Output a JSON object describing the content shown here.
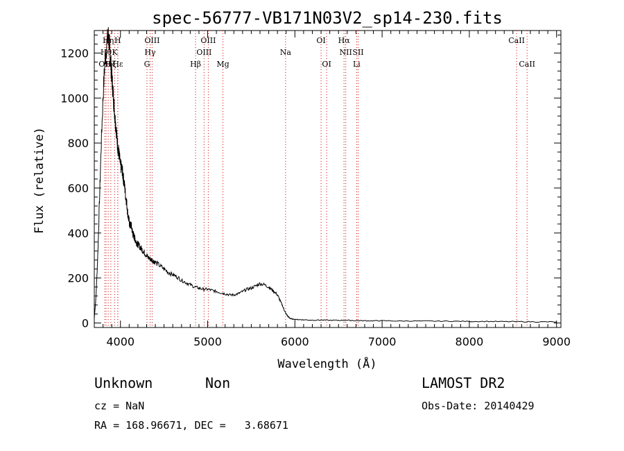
{
  "chart_data": {
    "type": "line",
    "title": "spec-56777-VB171N03V2_sp14-230.fits",
    "xlabel": "Wavelength (Å)",
    "ylabel": "Flux (relative)",
    "xlim": [
      3700,
      9050
    ],
    "ylim": [
      -20,
      1300
    ],
    "xticks": [
      4000,
      5000,
      6000,
      7000,
      8000,
      9000
    ],
    "yticks": [
      0,
      200,
      400,
      600,
      800,
      1000,
      1200
    ],
    "line_color": "#000000",
    "marker_color": "#cc0000",
    "grid": false,
    "spectrum": {
      "x": [
        3700,
        3720,
        3740,
        3760,
        3780,
        3800,
        3820,
        3840,
        3860,
        3870,
        3880,
        3890,
        3900,
        3910,
        3920,
        3930,
        3940,
        3950,
        3960,
        3970,
        3980,
        3990,
        4000,
        4010,
        4020,
        4030,
        4040,
        4050,
        4060,
        4070,
        4080,
        4090,
        4100,
        4110,
        4120,
        4130,
        4140,
        4150,
        4160,
        4170,
        4180,
        4190,
        4200,
        4220,
        4240,
        4260,
        4280,
        4300,
        4320,
        4340,
        4360,
        4380,
        4400,
        4450,
        4500,
        4550,
        4600,
        4650,
        4700,
        4750,
        4800,
        4850,
        4900,
        4950,
        5000,
        5050,
        5100,
        5150,
        5200,
        5250,
        5300,
        5350,
        5400,
        5450,
        5500,
        5550,
        5600,
        5650,
        5700,
        5730,
        5760,
        5800,
        5830,
        5860,
        5880,
        5900,
        5920,
        5940,
        5960,
        6000,
        6050,
        6100,
        6200,
        6300,
        6400,
        6500,
        6600,
        6700,
        6800,
        6900,
        7000,
        7200,
        7400,
        7600,
        7800,
        8000,
        8200,
        8400,
        8600,
        8800,
        9000
      ],
      "y": [
        20,
        120,
        300,
        550,
        800,
        1000,
        1150,
        1230,
        1280,
        1250,
        1200,
        1150,
        1100,
        1050,
        1000,
        950,
        900,
        870,
        820,
        780,
        760,
        730,
        700,
        690,
        680,
        650,
        630,
        600,
        560,
        540,
        500,
        470,
        450,
        430,
        440,
        420,
        400,
        390,
        380,
        370,
        360,
        355,
        350,
        340,
        330,
        320,
        310,
        300,
        290,
        285,
        280,
        275,
        270,
        255,
        240,
        225,
        215,
        205,
        190,
        180,
        170,
        160,
        155,
        150,
        150,
        145,
        140,
        135,
        130,
        125,
        125,
        130,
        140,
        150,
        155,
        165,
        175,
        170,
        160,
        150,
        140,
        125,
        100,
        75,
        55,
        40,
        30,
        22,
        18,
        16,
        15,
        14,
        13,
        13,
        12,
        12,
        12,
        11,
        10,
        10,
        10,
        9,
        9,
        8,
        8,
        7,
        7,
        6,
        6,
        5,
        5
      ]
    },
    "line_markers": [
      {
        "x": 3820,
        "label": "OII",
        "row": 3
      },
      {
        "x": 3835,
        "label": "Hθ",
        "row": 2
      },
      {
        "x": 3860,
        "label": "Hη",
        "row": 1
      },
      {
        "x": 3890,
        "label": "Hζ",
        "row": 3
      },
      {
        "x": 3934,
        "label": "K",
        "row": 2
      },
      {
        "x": 3969,
        "label": "H",
        "row": 1
      },
      {
        "x": 3970,
        "label": "Hε",
        "row": 3
      },
      {
        "x": 4304,
        "label": "G",
        "row": 3
      },
      {
        "x": 4340,
        "label": "Hγ",
        "row": 2
      },
      {
        "x": 4363,
        "label": "OIII",
        "row": 1
      },
      {
        "x": 4861,
        "label": "Hβ",
        "row": 3
      },
      {
        "x": 4959,
        "label": "OIII",
        "row": 2
      },
      {
        "x": 5007,
        "label": "OIII",
        "row": 1
      },
      {
        "x": 5175,
        "label": "Mg",
        "row": 3
      },
      {
        "x": 5893,
        "label": "Na",
        "row": 2
      },
      {
        "x": 6300,
        "label": "OI",
        "row": 1
      },
      {
        "x": 6364,
        "label": "OI",
        "row": 3
      },
      {
        "x": 6563,
        "label": "Hα",
        "row": 1
      },
      {
        "x": 6583,
        "label": "NII",
        "row": 2
      },
      {
        "x": 6708,
        "label": "Li",
        "row": 3
      },
      {
        "x": 6725,
        "label": "SII",
        "row": 2
      },
      {
        "x": 8542,
        "label": "CaII",
        "row": 1
      },
      {
        "x": 8662,
        "label": "CaII",
        "row": 3
      }
    ]
  },
  "info": {
    "class": "Unknown",
    "subclass": "Non",
    "cz": "cz = NaN",
    "radec": "RA = 168.96671, DEC =   3.68671",
    "survey": "LAMOST DR2",
    "obs_date": "Obs-Date: 20140429"
  }
}
